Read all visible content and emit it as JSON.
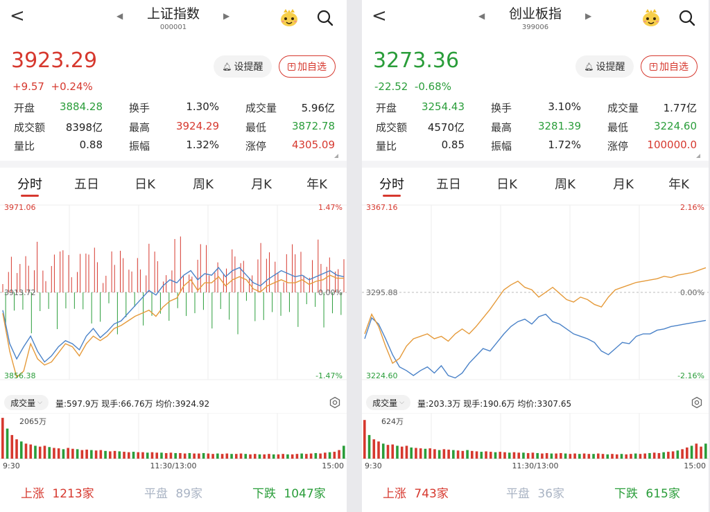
{
  "panels": [
    {
      "nav": {
        "title": "上证指数",
        "code": "000001",
        "back": "<",
        "prev": "◀",
        "next": "▶"
      },
      "price": "3923.29",
      "change": "+9.57",
      "change_pct": "+0.24%",
      "price_color": "#d6382e",
      "buttons": {
        "alert": "设提醒",
        "fav": "加自选"
      },
      "stats": [
        [
          {
            "label": "开盘",
            "value": "3884.28",
            "color": "#2a9d3a"
          },
          {
            "label": "换手",
            "value": "1.30%",
            "color": "#222"
          },
          {
            "label": "成交量",
            "value": "5.96亿",
            "color": "#222"
          }
        ],
        [
          {
            "label": "成交额",
            "value": "8398亿",
            "color": "#222"
          },
          {
            "label": "最高",
            "value": "3924.29",
            "color": "#d6382e"
          },
          {
            "label": "最低",
            "value": "3872.78",
            "color": "#2a9d3a"
          }
        ],
        [
          {
            "label": "量比",
            "value": "0.88",
            "color": "#222"
          },
          {
            "label": "振幅",
            "value": "1.32%",
            "color": "#222"
          },
          {
            "label": "涨停",
            "value": "4305.09",
            "color": "#d6382e"
          }
        ]
      ],
      "tabs": [
        "分时",
        "五日",
        "日K",
        "周K",
        "月K",
        "年K"
      ],
      "active_tab": 0,
      "chart_data": {
        "type": "line",
        "y_top": "3971.06",
        "y_mid": "3913.72",
        "y_bottom": "3856.38",
        "pct_top": "1.47%",
        "pct_mid": "0.00%",
        "pct_bottom": "-1.47%",
        "ylim": [
          3856.38,
          3971.06
        ],
        "series": [
          {
            "color": "#4a82c8",
            "values": [
              3902,
              3880,
              3870,
              3878,
              3885,
              3875,
              3868,
              3872,
              3878,
              3882,
              3880,
              3876,
              3885,
              3890,
              3884,
              3888,
              3893,
              3895,
              3900,
              3905,
              3910,
              3915,
              3912,
              3918,
              3922,
              3920,
              3925,
              3928,
              3922,
              3926,
              3925,
              3930,
              3924,
              3928,
              3930,
              3925,
              3920,
              3918,
              3922,
              3925,
              3928,
              3926,
              3924,
              3925,
              3922,
              3924,
              3926,
              3928,
              3925,
              3924
            ]
          },
          {
            "color": "#e59a3a",
            "values": [
              3900,
              3875,
              3858,
              3862,
              3880,
              3870,
              3866,
              3868,
              3874,
              3880,
              3878,
              3872,
              3880,
              3885,
              3882,
              3885,
              3890,
              3892,
              3895,
              3898,
              3900,
              3902,
              3898,
              3904,
              3908,
              3910,
              3918,
              3922,
              3915,
              3920,
              3920,
              3924,
              3918,
              3922,
              3924,
              3922,
              3916,
              3914,
              3918,
              3920,
              3922,
              3920,
              3920,
              3922,
              3919,
              3921,
              3922,
              3925,
              3923,
              3923
            ]
          }
        ]
      },
      "volume": {
        "selector": "成交量",
        "info": "量:597.9万  现手:66.76万  均价:3924.92",
        "max": "2065万",
        "values": [
          0.95,
          0.7,
          0.55,
          0.45,
          0.4,
          0.35,
          0.33,
          0.3,
          0.28,
          0.3,
          0.27,
          0.25,
          0.24,
          0.22,
          0.25,
          0.23,
          0.22,
          0.2,
          0.21,
          0.2,
          0.19,
          0.2,
          0.18,
          0.17,
          0.18,
          0.17,
          0.16,
          0.15,
          0.16,
          0.15,
          0.15,
          0.14,
          0.15,
          0.14,
          0.14,
          0.13,
          0.14,
          0.13,
          0.13,
          0.12,
          0.13,
          0.12,
          0.12,
          0.13,
          0.12,
          0.11,
          0.12,
          0.11,
          0.12,
          0.11,
          0.11,
          0.12,
          0.11,
          0.1,
          0.11,
          0.1,
          0.1,
          0.11,
          0.1,
          0.1,
          0.11,
          0.1,
          0.1,
          0.11,
          0.12,
          0.11,
          0.12,
          0.13,
          0.12,
          0.14,
          0.15,
          0.16,
          0.2,
          0.3
        ],
        "time_start": "9:30",
        "time_mid": "11:30/13:00",
        "time_end": "15:00"
      },
      "footer": {
        "up_label": "上涨",
        "up": "1213家",
        "flat_label": "平盘",
        "flat": "89家",
        "down_label": "下跌",
        "down": "1047家"
      }
    },
    {
      "nav": {
        "title": "创业板指",
        "code": "399006",
        "back": "<",
        "prev": "◀",
        "next": "▶"
      },
      "price": "3273.36",
      "change": "-22.52",
      "change_pct": "-0.68%",
      "price_color": "#2a9d3a",
      "buttons": {
        "alert": "设提醒",
        "fav": "加自选"
      },
      "stats": [
        [
          {
            "label": "开盘",
            "value": "3254.43",
            "color": "#2a9d3a"
          },
          {
            "label": "换手",
            "value": "3.10%",
            "color": "#222"
          },
          {
            "label": "成交量",
            "value": "1.77亿",
            "color": "#222"
          }
        ],
        [
          {
            "label": "成交额",
            "value": "4570亿",
            "color": "#222"
          },
          {
            "label": "最高",
            "value": "3281.39",
            "color": "#2a9d3a"
          },
          {
            "label": "最低",
            "value": "3224.60",
            "color": "#2a9d3a"
          }
        ],
        [
          {
            "label": "量比",
            "value": "0.85",
            "color": "#222"
          },
          {
            "label": "振幅",
            "value": "1.72%",
            "color": "#222"
          },
          {
            "label": "涨停",
            "value": "100000.0",
            "color": "#d6382e"
          }
        ]
      ],
      "tabs": [
        "分时",
        "五日",
        "日K",
        "周K",
        "月K",
        "年K"
      ],
      "active_tab": 0,
      "chart_data": {
        "type": "line",
        "y_top": "3367.16",
        "y_mid": "3295.88",
        "y_bottom": "3224.60",
        "pct_top": "2.16%",
        "pct_mid": "0.00%",
        "pct_bottom": "-2.16%",
        "ylim": [
          3224.6,
          3367.16
        ],
        "series": [
          {
            "color": "#4a82c8",
            "values": [
              3258,
              3275,
              3270,
              3258,
              3245,
              3235,
              3232,
              3228,
              3232,
              3235,
              3230,
              3236,
              3228,
              3226,
              3230,
              3238,
              3244,
              3250,
              3248,
              3255,
              3262,
              3268,
              3272,
              3274,
              3270,
              3276,
              3278,
              3272,
              3270,
              3266,
              3262,
              3260,
              3258,
              3255,
              3248,
              3245,
              3250,
              3255,
              3254,
              3260,
              3262,
              3262,
              3265,
              3266,
              3268,
              3269,
              3270,
              3271,
              3272,
              3273
            ]
          },
          {
            "color": "#e59a3a",
            "values": [
              3262,
              3278,
              3268,
              3252,
              3238,
              3242,
              3252,
              3258,
              3260,
              3262,
              3258,
              3260,
              3256,
              3262,
              3266,
              3262,
              3268,
              3275,
              3282,
              3290,
              3298,
              3302,
              3305,
              3300,
              3298,
              3292,
              3296,
              3300,
              3295,
              3290,
              3288,
              3292,
              3290,
              3286,
              3284,
              3292,
              3298,
              3300,
              3302,
              3304,
              3305,
              3306,
              3307,
              3309,
              3308,
              3310,
              3311,
              3312,
              3314,
              3316
            ]
          }
        ]
      },
      "volume": {
        "selector": "成交量",
        "info": "量:203.3万  现手:190.6万  均价:3307.65",
        "max": "624万",
        "values": [
          0.9,
          0.55,
          0.45,
          0.4,
          0.35,
          0.32,
          0.33,
          0.3,
          0.28,
          0.3,
          0.26,
          0.25,
          0.24,
          0.23,
          0.24,
          0.22,
          0.2,
          0.22,
          0.21,
          0.2,
          0.19,
          0.18,
          0.2,
          0.18,
          0.17,
          0.16,
          0.17,
          0.16,
          0.15,
          0.16,
          0.15,
          0.14,
          0.15,
          0.14,
          0.14,
          0.13,
          0.14,
          0.13,
          0.12,
          0.13,
          0.12,
          0.12,
          0.13,
          0.12,
          0.11,
          0.12,
          0.11,
          0.12,
          0.11,
          0.11,
          0.12,
          0.11,
          0.1,
          0.11,
          0.1,
          0.11,
          0.1,
          0.11,
          0.12,
          0.11,
          0.12,
          0.13,
          0.14,
          0.13,
          0.15,
          0.16,
          0.17,
          0.19,
          0.22,
          0.26,
          0.3,
          0.35,
          0.28,
          0.35
        ],
        "time_start": "9:30",
        "time_mid": "11:30/13:00",
        "time_end": "15:00"
      },
      "footer": {
        "up_label": "上涨",
        "up": "743家",
        "flat_label": "平盘",
        "flat": "36家",
        "down_label": "下跌",
        "down": "615家"
      }
    }
  ]
}
